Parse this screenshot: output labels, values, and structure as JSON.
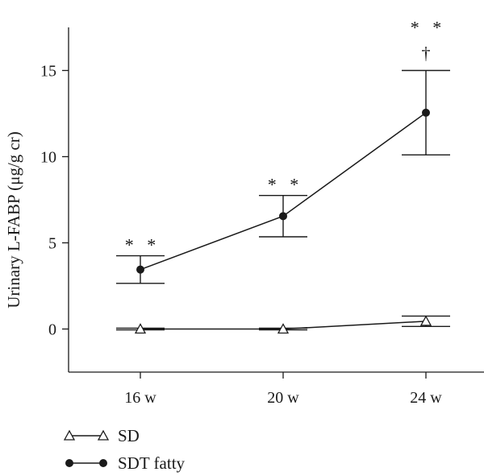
{
  "chart_data": {
    "type": "line",
    "categories": [
      "16 w",
      "20 w",
      "24 w"
    ],
    "ylabel": "Urinary L-FABP (μg/g cr)",
    "ylim": [
      -2.5,
      17.5
    ],
    "yticks": [
      "0",
      "5",
      "10",
      "15"
    ],
    "yticks_values": [
      0,
      5,
      10,
      15
    ],
    "grid": false,
    "legend_position": "bottom-left",
    "series": [
      {
        "name": "SD",
        "marker": "open-triangle",
        "values": [
          0.0,
          0.0,
          0.45
        ],
        "error": [
          0.05,
          0.05,
          0.3
        ]
      },
      {
        "name": "SDT fatty",
        "marker": "filled-circle",
        "values": [
          3.45,
          6.55,
          12.55
        ],
        "error": [
          0.8,
          1.2,
          2.45
        ]
      }
    ],
    "annotations": [
      {
        "category": "16 w",
        "text": "*   *"
      },
      {
        "category": "20 w",
        "text": "*   *"
      },
      {
        "category": "24 w",
        "text": "*   *"
      },
      {
        "category": "24 w",
        "text": "†"
      }
    ]
  },
  "colors": {
    "line": "#1a1a1a",
    "background": "#ffffff"
  }
}
